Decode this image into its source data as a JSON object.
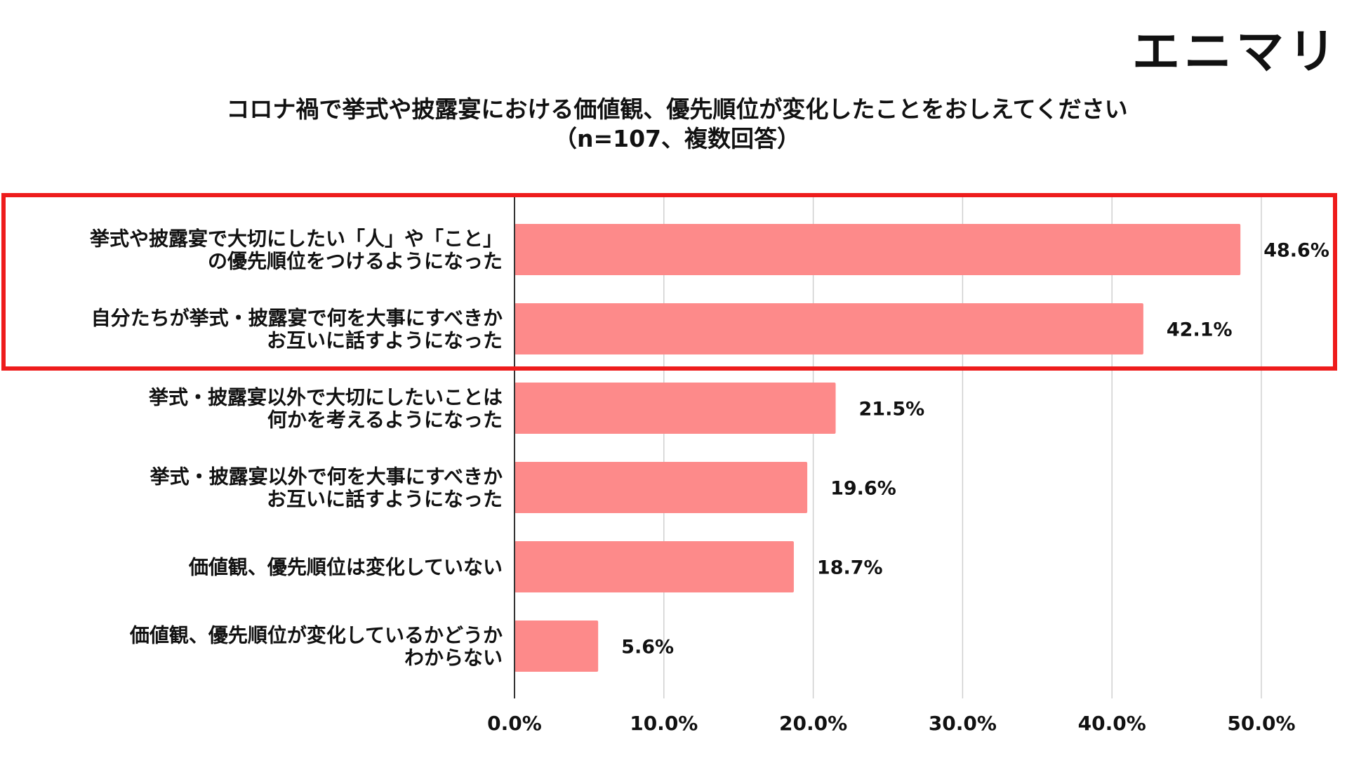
{
  "logo": "エニマリ",
  "chart_data": {
    "type": "bar",
    "orientation": "horizontal",
    "title": "コロナ禍で挙式や披露宴における価値観、優先順位が変化したことをおしえてください",
    "subtitle": "（n=107、複数回答）",
    "categories": [
      [
        "挙式や披露宴で大切にしたい「人」や「こと」",
        "の優先順位をつけるようになった"
      ],
      [
        "自分たちが挙式・披露宴で何を大事にすべきか",
        "お互いに話すようになった"
      ],
      [
        "挙式・披露宴以外で大切にしたいことは",
        "何かを考えるようになった"
      ],
      [
        "挙式・披露宴以外で何を大事にすべきか",
        "お互いに話すようになった"
      ],
      [
        "価値観、優先順位は変化していない"
      ],
      [
        "価値観、優先順位が変化しているかどうか",
        "わからない"
      ]
    ],
    "values": [
      48.6,
      42.1,
      21.5,
      19.6,
      18.7,
      5.6
    ],
    "value_labels": [
      "48.6%",
      "42.1%",
      "21.5%",
      "19.6%",
      "18.7%",
      "5.6%"
    ],
    "xlim": [
      0,
      50
    ],
    "x_ticks": [
      "0.0%",
      "10.0%",
      "20.0%",
      "30.0%",
      "40.0%",
      "50.0%"
    ],
    "grid": true,
    "bar_color": "#fd8a8a",
    "highlight": {
      "color": "#ee1c1c",
      "categories": [
        0,
        1
      ]
    }
  }
}
